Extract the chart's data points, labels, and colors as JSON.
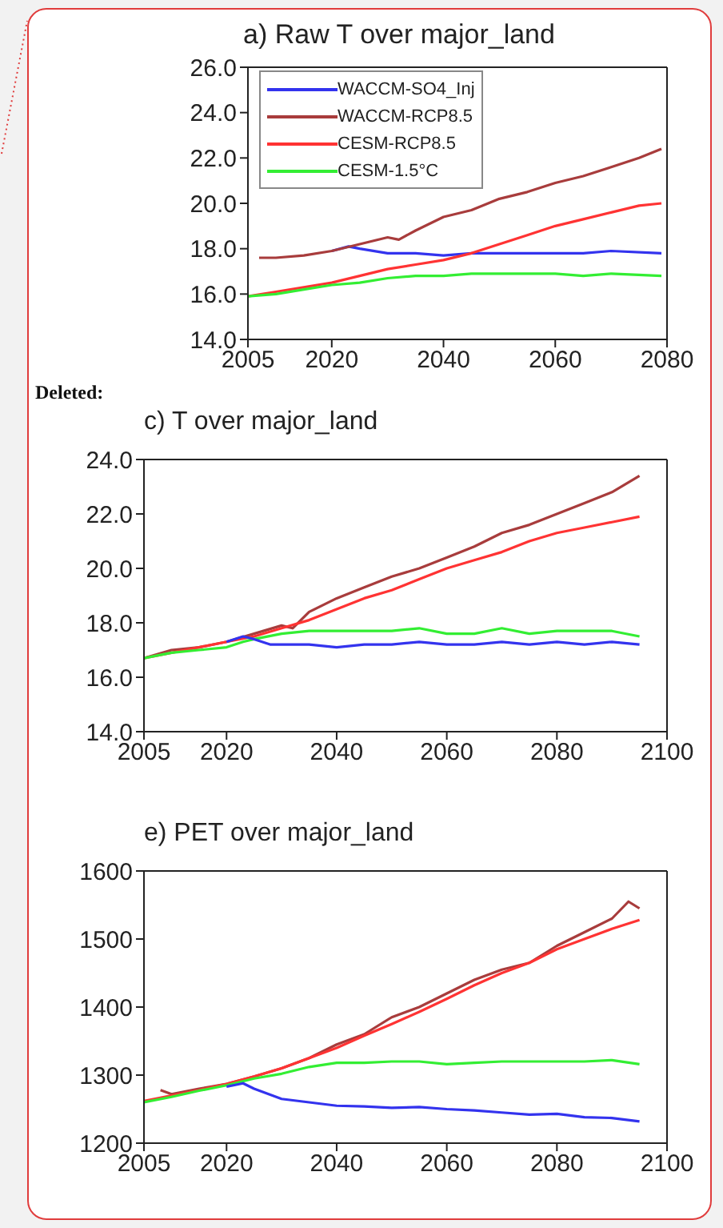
{
  "chart_data": [
    {
      "type": "line",
      "title": "a)  Raw T over major_land",
      "xlim": [
        2005,
        2080
      ],
      "xticks": [
        2005,
        2020,
        2040,
        2060,
        2080
      ],
      "ylim": [
        14,
        26
      ],
      "yticks": [
        {
          "value": 14,
          "label": "14.0"
        },
        {
          "value": 16,
          "label": "16.0"
        },
        {
          "value": 18,
          "label": "18.0"
        },
        {
          "value": 20,
          "label": "20.0"
        },
        {
          "value": 22,
          "label": "22.0"
        },
        {
          "value": 24,
          "label": "24.0"
        },
        {
          "value": 26,
          "label": "26.0"
        }
      ],
      "legend": "top left",
      "grid": false,
      "marker": "none",
      "line_style": "solid",
      "series": [
        {
          "name": "WACCM-SO4_Inj",
          "color": "#3333ee",
          "x": [
            2020,
            2023,
            2025,
            2030,
            2035,
            2040,
            2045,
            2050,
            2055,
            2060,
            2065,
            2070,
            2079
          ],
          "values": [
            17.9,
            18.1,
            18.0,
            17.8,
            17.8,
            17.7,
            17.8,
            17.8,
            17.8,
            17.8,
            17.8,
            17.9,
            17.8
          ]
        },
        {
          "name": "WACCM-RCP8.5",
          "color": "#a83c3c",
          "x": [
            2007,
            2010,
            2015,
            2020,
            2025,
            2030,
            2032,
            2035,
            2040,
            2045,
            2050,
            2055,
            2060,
            2065,
            2070,
            2075,
            2079
          ],
          "values": [
            17.6,
            17.6,
            17.7,
            17.9,
            18.2,
            18.5,
            18.4,
            18.8,
            19.4,
            19.7,
            20.2,
            20.5,
            20.9,
            21.2,
            21.6,
            22.0,
            22.4
          ]
        },
        {
          "name": "CESM-RCP8.5",
          "color": "#ff3333",
          "x": [
            2005,
            2010,
            2015,
            2020,
            2025,
            2030,
            2035,
            2040,
            2045,
            2050,
            2055,
            2060,
            2065,
            2070,
            2075,
            2079
          ],
          "values": [
            15.9,
            16.1,
            16.3,
            16.5,
            16.8,
            17.1,
            17.3,
            17.5,
            17.8,
            18.2,
            18.6,
            19.0,
            19.3,
            19.6,
            19.9,
            20.0
          ]
        },
        {
          "name": "CESM-1.5°C",
          "color": "#33ee33",
          "x": [
            2005,
            2010,
            2015,
            2020,
            2025,
            2030,
            2035,
            2040,
            2045,
            2050,
            2055,
            2060,
            2065,
            2070,
            2079
          ],
          "values": [
            15.9,
            16.0,
            16.2,
            16.4,
            16.5,
            16.7,
            16.8,
            16.8,
            16.9,
            16.9,
            16.9,
            16.9,
            16.8,
            16.9,
            16.8
          ]
        }
      ]
    },
    {
      "type": "line",
      "title": "c) T over major_land",
      "annotations": [
        "Deleted:"
      ],
      "xlim": [
        2005,
        2100
      ],
      "xticks": [
        2005,
        2020,
        2040,
        2060,
        2080,
        2100
      ],
      "ylim": [
        14,
        24
      ],
      "yticks": [
        {
          "value": 14,
          "label": "14.0"
        },
        {
          "value": 16,
          "label": "16.0"
        },
        {
          "value": 18,
          "label": "18.0"
        },
        {
          "value": 20,
          "label": "20.0"
        },
        {
          "value": 22,
          "label": "22.0"
        },
        {
          "value": 24,
          "label": "24.0"
        }
      ],
      "legend": false,
      "grid": false,
      "marker": "none",
      "line_style": "solid",
      "series": [
        {
          "color": "#a83c3c",
          "x": [
            2005,
            2010,
            2015,
            2020,
            2025,
            2030,
            2032,
            2035,
            2040,
            2045,
            2050,
            2055,
            2060,
            2065,
            2070,
            2075,
            2080,
            2085,
            2090,
            2095
          ],
          "values": [
            16.7,
            17.0,
            17.1,
            17.3,
            17.6,
            17.9,
            17.8,
            18.4,
            18.9,
            19.3,
            19.7,
            20.0,
            20.4,
            20.8,
            21.3,
            21.6,
            22.0,
            22.4,
            22.8,
            23.4
          ]
        },
        {
          "color": "#ff3333",
          "x": [
            2005,
            2010,
            2015,
            2020,
            2025,
            2030,
            2035,
            2040,
            2045,
            2050,
            2055,
            2060,
            2065,
            2070,
            2075,
            2080,
            2085,
            2090,
            2095
          ],
          "values": [
            16.7,
            16.9,
            17.1,
            17.3,
            17.5,
            17.8,
            18.1,
            18.5,
            18.9,
            19.2,
            19.6,
            20.0,
            20.3,
            20.6,
            21.0,
            21.3,
            21.5,
            21.7,
            21.9
          ]
        },
        {
          "color": "#33ee33",
          "x": [
            2005,
            2010,
            2015,
            2020,
            2023,
            2025,
            2030,
            2035,
            2040,
            2050,
            2055,
            2060,
            2065,
            2070,
            2075,
            2080,
            2085,
            2090,
            2095
          ],
          "values": [
            16.7,
            16.9,
            17.0,
            17.1,
            17.3,
            17.4,
            17.6,
            17.7,
            17.7,
            17.7,
            17.8,
            17.6,
            17.6,
            17.8,
            17.6,
            17.7,
            17.7,
            17.7,
            17.5
          ]
        },
        {
          "color": "#3333ee",
          "x": [
            2020,
            2023,
            2025,
            2028,
            2030,
            2035,
            2040,
            2045,
            2050,
            2055,
            2060,
            2065,
            2070,
            2075,
            2080,
            2085,
            2090,
            2095
          ],
          "values": [
            17.3,
            17.5,
            17.4,
            17.2,
            17.2,
            17.2,
            17.1,
            17.2,
            17.2,
            17.3,
            17.2,
            17.2,
            17.3,
            17.2,
            17.3,
            17.2,
            17.3,
            17.2
          ]
        }
      ]
    },
    {
      "type": "line",
      "title": "e) PET over major_land",
      "xlim": [
        2005,
        2100
      ],
      "xticks": [
        2005,
        2020,
        2040,
        2060,
        2080,
        2100
      ],
      "ylim": [
        1200,
        1600
      ],
      "yticks": [
        1200,
        1300,
        1400,
        1500,
        1600
      ],
      "legend": false,
      "grid": false,
      "marker": "none",
      "line_style": "solid",
      "series": [
        {
          "color": "#a83c3c",
          "x": [
            2008,
            2010,
            2015,
            2020,
            2025,
            2030,
            2035,
            2040,
            2045,
            2050,
            2055,
            2060,
            2065,
            2070,
            2075,
            2080,
            2085,
            2090,
            2093,
            2095
          ],
          "values": [
            1278,
            1272,
            1280,
            1287,
            1298,
            1310,
            1325,
            1345,
            1360,
            1385,
            1400,
            1420,
            1440,
            1455,
            1465,
            1490,
            1510,
            1530,
            1555,
            1545
          ]
        },
        {
          "color": "#ff3333",
          "x": [
            2005,
            2010,
            2015,
            2020,
            2025,
            2030,
            2035,
            2040,
            2045,
            2050,
            2055,
            2060,
            2065,
            2070,
            2075,
            2080,
            2085,
            2090,
            2095
          ],
          "values": [
            1262,
            1270,
            1278,
            1287,
            1298,
            1310,
            1325,
            1340,
            1358,
            1375,
            1393,
            1412,
            1432,
            1450,
            1465,
            1485,
            1500,
            1515,
            1528
          ]
        },
        {
          "color": "#33ee33",
          "x": [
            2005,
            2010,
            2015,
            2020,
            2025,
            2030,
            2035,
            2040,
            2045,
            2050,
            2055,
            2060,
            2065,
            2070,
            2075,
            2080,
            2085,
            2090,
            2095
          ],
          "values": [
            1260,
            1268,
            1277,
            1285,
            1295,
            1302,
            1312,
            1318,
            1318,
            1320,
            1320,
            1316,
            1318,
            1320,
            1320,
            1320,
            1320,
            1322,
            1316
          ]
        },
        {
          "color": "#3333ee",
          "x": [
            2020,
            2023,
            2025,
            2030,
            2035,
            2040,
            2045,
            2050,
            2055,
            2060,
            2065,
            2070,
            2075,
            2080,
            2085,
            2090,
            2095
          ],
          "values": [
            1283,
            1288,
            1280,
            1265,
            1260,
            1255,
            1254,
            1252,
            1253,
            1250,
            1248,
            1245,
            1242,
            1243,
            1238,
            1237,
            1232
          ]
        }
      ]
    }
  ]
}
